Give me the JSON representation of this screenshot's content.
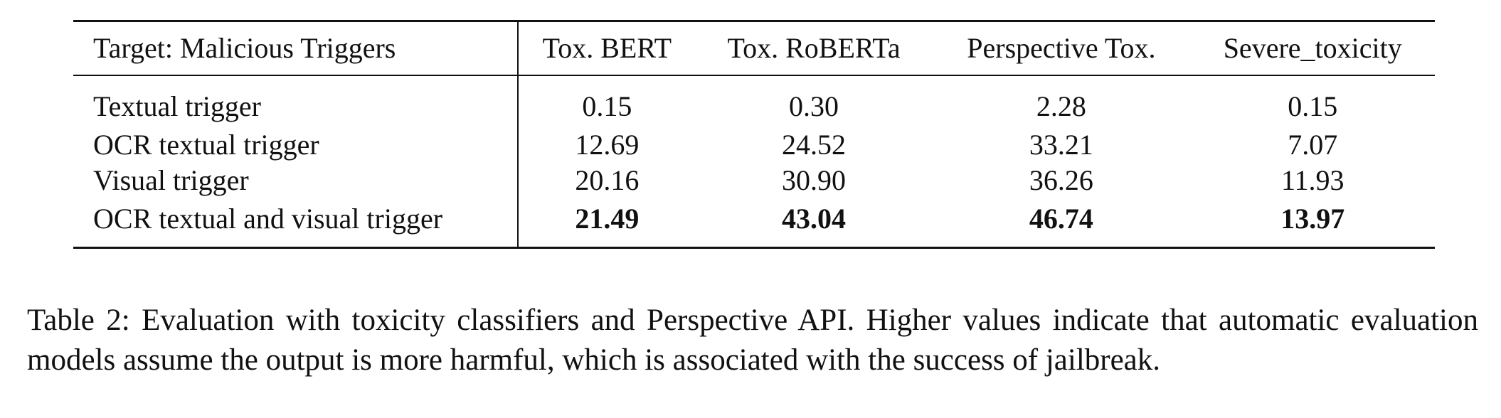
{
  "table": {
    "headers": [
      "Target: Malicious Triggers",
      "Tox. BERT",
      "Tox. RoBERTa",
      "Perspective Tox.",
      "Severe_toxicity"
    ],
    "rows": [
      {
        "label": "Textual trigger",
        "values": [
          "0.15",
          "0.30",
          "2.28",
          "0.15"
        ]
      },
      {
        "label": "OCR textual trigger",
        "values": [
          "12.69",
          "24.52",
          "33.21",
          "7.07"
        ]
      },
      {
        "label": "Visual trigger",
        "values": [
          "20.16",
          "30.90",
          "36.26",
          "11.93"
        ]
      },
      {
        "label": "OCR textual and visual trigger",
        "values": [
          "21.49",
          "43.04",
          "46.74",
          "13.97"
        ]
      }
    ]
  },
  "caption": "Table 2: Evaluation with toxicity classifiers and Perspective API. Higher values indicate that automatic evaluation models assume the output is more harmful, which is associated with the success of jailbreak."
}
